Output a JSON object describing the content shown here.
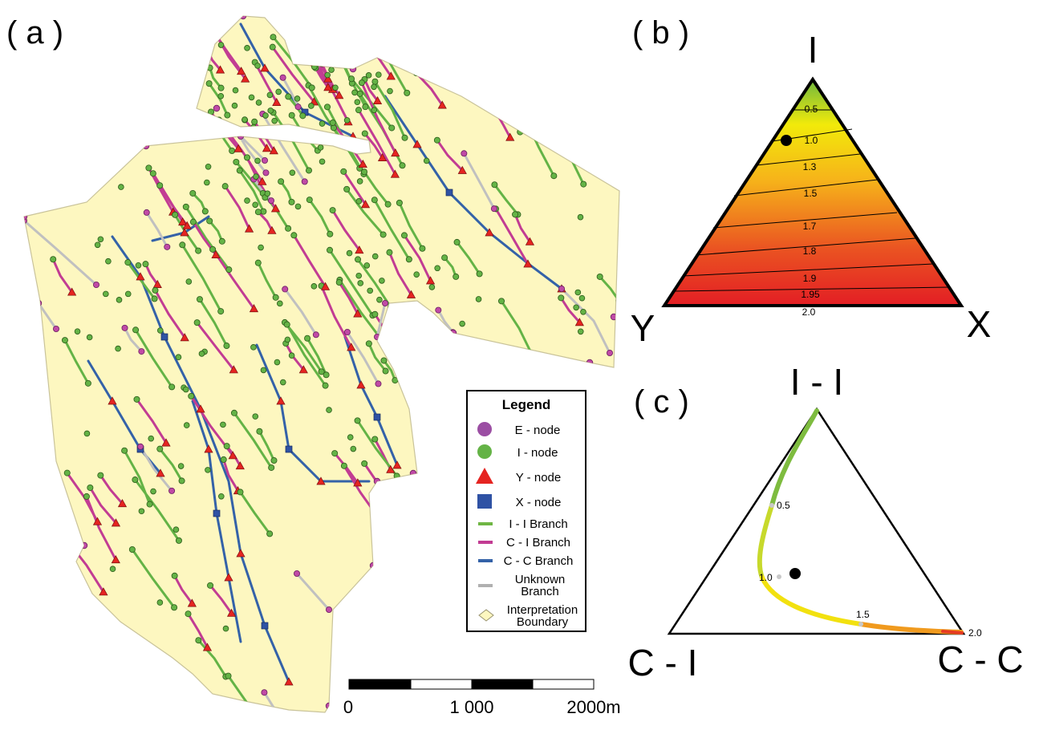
{
  "panels": {
    "a": "( a )",
    "b": "( b )",
    "c": "( c )"
  },
  "legend": {
    "title": "Legend",
    "items": [
      {
        "label": "E - node",
        "symbol": "circle",
        "color": "#9b4ea3"
      },
      {
        "label": "I - node",
        "symbol": "circle",
        "color": "#64b346"
      },
      {
        "label": "Y - node",
        "symbol": "triangle",
        "color": "#e52421"
      },
      {
        "label": "X - node",
        "symbol": "square",
        "color": "#2f52a4"
      },
      {
        "label": "I - I Branch",
        "symbol": "line",
        "color": "#6fb644"
      },
      {
        "label": "C - I Branch",
        "symbol": "line",
        "color": "#c23c93"
      },
      {
        "label": "C - C Branch",
        "symbol": "line",
        "color": "#3462a8"
      },
      {
        "label": "Unknown",
        "label2": "Branch",
        "symbol": "line",
        "color": "#b0b0b0"
      },
      {
        "label": "Interpretation",
        "label2": "Boundary",
        "symbol": "diamond",
        "color": "#fdf7c0"
      }
    ]
  },
  "scale_bar": {
    "labels": [
      "0",
      "1 000",
      "2000m"
    ]
  },
  "ternary_b": {
    "vertices": {
      "top": "I",
      "left": "Y",
      "right": "X"
    },
    "contours": [
      {
        "label": "0.5"
      },
      {
        "label": "1.0"
      },
      {
        "label": "1.3"
      },
      {
        "label": "1.5"
      },
      {
        "label": "1.7"
      },
      {
        "label": "1.8"
      },
      {
        "label": "1.9"
      },
      {
        "label": "1.95"
      },
      {
        "label": "2.0"
      }
    ]
  },
  "ternary_c": {
    "vertices": {
      "top": "I - I",
      "left": "C - I",
      "right": "C - C"
    },
    "curve_labels": [
      {
        "label": "0.5"
      },
      {
        "label": "1.0"
      },
      {
        "label": "1.5"
      },
      {
        "label": "2.0"
      }
    ]
  },
  "colors": {
    "map_fill": "#fdf7c0",
    "map_border": "#c9c39a",
    "green": "#64b346",
    "magenta": "#c23c93",
    "blue": "#3462a8",
    "gray": "#c0c0c0",
    "red": "#e52421",
    "xnode": "#2f52a4",
    "enode": "#c04aa6"
  }
}
